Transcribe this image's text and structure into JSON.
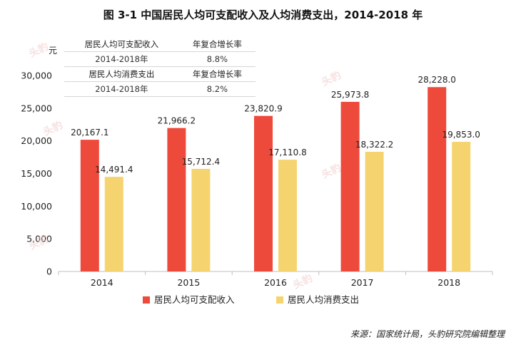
{
  "chart_data": {
    "type": "bar",
    "title": "图 3-1 中国居民人均可支配收入及人均消费支出，2014-2018 年",
    "ylabel": "元",
    "categories": [
      "2014",
      "2015",
      "2016",
      "2017",
      "2018"
    ],
    "series": [
      {
        "name": "居民人均可支配收入",
        "values": [
          20167.1,
          21966.2,
          23820.9,
          25973.8,
          28228.0
        ],
        "labels": [
          "20,167.1",
          "21,966.2",
          "23,820.9",
          "25,973.8",
          "28,228.0"
        ]
      },
      {
        "name": "居民人均消费支出",
        "values": [
          14491.4,
          15712.4,
          17110.8,
          18322.2,
          19853.0
        ],
        "labels": [
          "14,491.4",
          "15,712.4",
          "17,110.8",
          "18,322.2",
          "19,853.0"
        ]
      }
    ],
    "ylim": [
      0,
      30000
    ],
    "yticks": [
      0,
      5000,
      10000,
      15000,
      20000,
      25000,
      30000
    ],
    "ytick_labels": [
      "0",
      "5,000",
      "10,000",
      "15,000",
      "20,000",
      "25,000",
      "30,000"
    ],
    "grid": false,
    "legend": "bottom",
    "colors": [
      "#ee4a3c",
      "#f5d470"
    ]
  },
  "cagr_table": {
    "rows": [
      {
        "metric": "居民人均可支配收入",
        "rate_label": "年复合增长率"
      },
      {
        "metric": "2014-2018年",
        "rate_label": "8.8%"
      },
      {
        "metric": "居民人均消费支出",
        "rate_label": "年复合增长率"
      },
      {
        "metric": "2014-2018年",
        "rate_label": "8.2%"
      }
    ]
  },
  "source": "来源：国家统计局，头豹研究院编辑整理",
  "watermark": "头豹"
}
